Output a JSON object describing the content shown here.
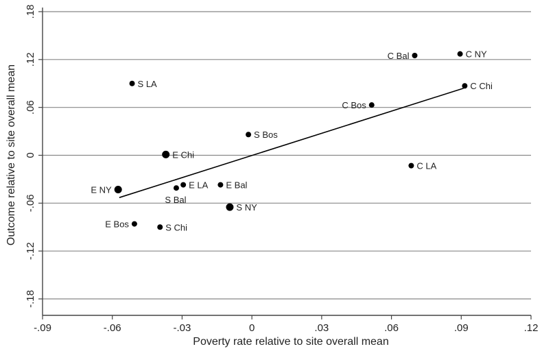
{
  "chart_data": {
    "type": "scatter",
    "xlabel": "Poverty rate relative to site overall mean",
    "ylabel": "Outcome relative to site overall mean",
    "xlim": [
      -0.09,
      0.12
    ],
    "ylim": [
      -0.18,
      0.18
    ],
    "x_ticks": [
      {
        "value": -0.09,
        "label": "-.09"
      },
      {
        "value": -0.06,
        "label": "-.06"
      },
      {
        "value": -0.03,
        "label": "-.03"
      },
      {
        "value": 0,
        "label": "0"
      },
      {
        "value": 0.03,
        "label": ".03"
      },
      {
        "value": 0.06,
        "label": ".06"
      },
      {
        "value": 0.09,
        "label": ".09"
      },
      {
        "value": 0.12,
        "label": ".12"
      }
    ],
    "y_ticks": [
      {
        "value": 0.18,
        "label": ".18"
      },
      {
        "value": 0.12,
        "label": ".12"
      },
      {
        "value": 0.06,
        "label": ".06"
      },
      {
        "value": 0,
        "label": "0"
      },
      {
        "value": -0.06,
        "label": "-.06"
      },
      {
        "value": -0.12,
        "label": "-.12"
      },
      {
        "value": -0.18,
        "label": "-.18"
      }
    ],
    "grid": "horizontal",
    "points": [
      {
        "label": "C Bal",
        "x": 0.07,
        "y": 0.125,
        "size": "small",
        "label_pos": "left"
      },
      {
        "label": "C NY",
        "x": 0.0895,
        "y": 0.127,
        "size": "small",
        "label_pos": "right"
      },
      {
        "label": "S LA",
        "x": -0.0515,
        "y": 0.09,
        "size": "small",
        "label_pos": "right"
      },
      {
        "label": "C Chi",
        "x": 0.0915,
        "y": 0.087,
        "size": "small",
        "label_pos": "right"
      },
      {
        "label": "C Bos",
        "x": 0.0515,
        "y": 0.063,
        "size": "small",
        "label_pos": "left"
      },
      {
        "label": "S Bos",
        "x": -0.0015,
        "y": 0.026,
        "size": "small",
        "label_pos": "right"
      },
      {
        "label": "E Chi",
        "x": -0.037,
        "y": 0.001,
        "size": "large",
        "label_pos": "right"
      },
      {
        "label": "C LA",
        "x": 0.0685,
        "y": -0.013,
        "size": "small",
        "label_pos": "right"
      },
      {
        "label": "E LA",
        "x": -0.0295,
        "y": -0.037,
        "size": "small",
        "label_pos": "right"
      },
      {
        "label": "E Bal",
        "x": -0.0135,
        "y": -0.037,
        "size": "small",
        "label_pos": "right"
      },
      {
        "label": "S Bal",
        "x": -0.0325,
        "y": -0.041,
        "size": "small",
        "label_pos": "below"
      },
      {
        "label": "E NY",
        "x": -0.0575,
        "y": -0.043,
        "size": "large",
        "label_pos": "left"
      },
      {
        "label": "S NY",
        "x": -0.0095,
        "y": -0.065,
        "size": "large",
        "label_pos": "right"
      },
      {
        "label": "E Bos",
        "x": -0.0505,
        "y": -0.086,
        "size": "small",
        "label_pos": "left"
      },
      {
        "label": "S Chi",
        "x": -0.0395,
        "y": -0.09,
        "size": "small",
        "label_pos": "right"
      }
    ],
    "fit_line": {
      "x": [
        -0.057,
        0.091
      ],
      "y": [
        -0.053,
        0.084
      ]
    },
    "colors": {
      "points": "#000000",
      "grid": "#888888",
      "axis": "#444444",
      "line": "#000000"
    }
  }
}
